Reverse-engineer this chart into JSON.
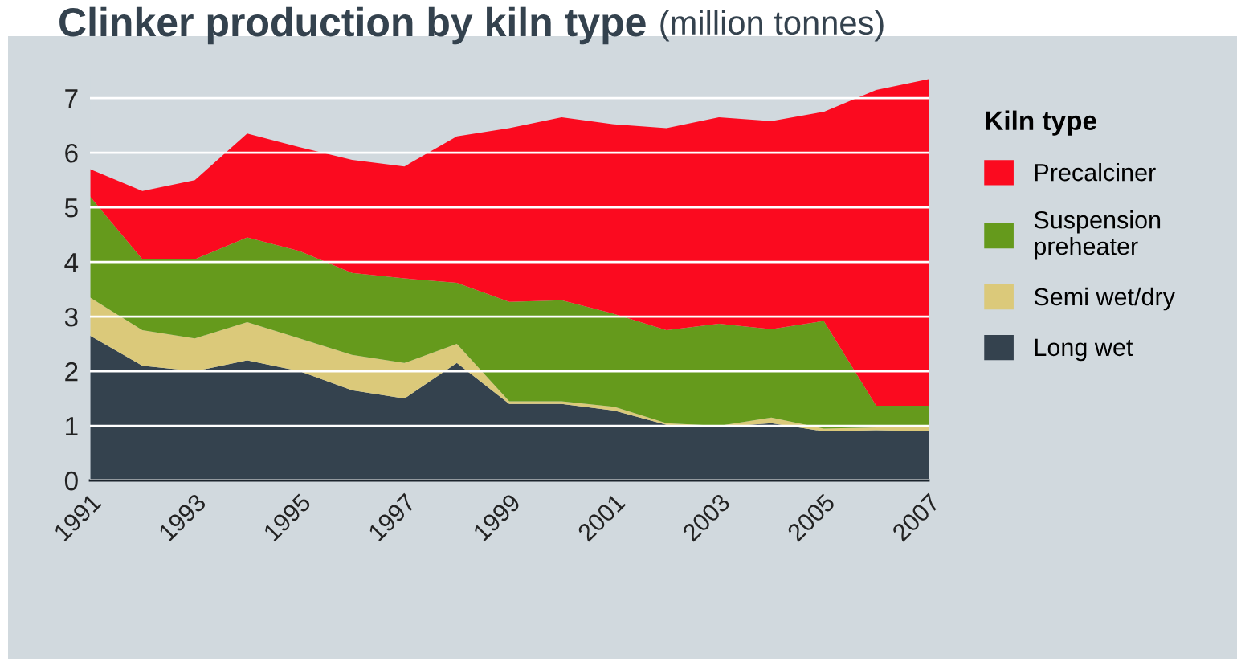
{
  "chart_data": {
    "type": "area",
    "stacked": true,
    "title": "Clinker production by kiln type",
    "subtitle": "(million tonnes)",
    "legend_title": "Kiln type",
    "legend": "right",
    "grid": "y",
    "x": [
      1991,
      1992,
      1993,
      1994,
      1995,
      1996,
      1997,
      1998,
      1999,
      2000,
      2001,
      2002,
      2003,
      2004,
      2005,
      2006,
      2007
    ],
    "xlim": [
      1991,
      2007
    ],
    "xticks": [
      1991,
      1993,
      1995,
      1997,
      1999,
      2001,
      2003,
      2005,
      2007
    ],
    "ylim": [
      0,
      7.4
    ],
    "yticks": [
      0,
      1,
      2,
      3,
      4,
      5,
      6,
      7
    ],
    "series": [
      {
        "name": "Long wet",
        "color": "#34424e",
        "values": [
          2.65,
          2.1,
          2.0,
          2.2,
          2.0,
          1.65,
          1.5,
          2.15,
          1.4,
          1.4,
          1.28,
          1.02,
          0.98,
          1.05,
          0.9,
          0.92,
          0.9
        ]
      },
      {
        "name": "Semi wet/dry",
        "color": "#dbc97a",
        "values": [
          0.7,
          0.65,
          0.6,
          0.7,
          0.6,
          0.65,
          0.65,
          0.35,
          0.05,
          0.05,
          0.07,
          0.03,
          0.02,
          0.1,
          0.05,
          0.05,
          0.07
        ]
      },
      {
        "name": "Suspension preheater",
        "color": "#659a1c",
        "values": [
          1.85,
          1.3,
          1.45,
          1.55,
          1.6,
          1.5,
          1.55,
          1.12,
          1.82,
          1.85,
          1.7,
          1.7,
          1.87,
          1.62,
          1.97,
          0.4,
          0.4
        ]
      },
      {
        "name": "Precalciner",
        "color": "#fb0a1f",
        "values": [
          0.5,
          1.25,
          1.45,
          1.9,
          1.9,
          2.07,
          2.05,
          2.68,
          3.18,
          3.35,
          3.47,
          3.7,
          3.78,
          3.81,
          3.83,
          5.78,
          5.98
        ]
      }
    ]
  }
}
